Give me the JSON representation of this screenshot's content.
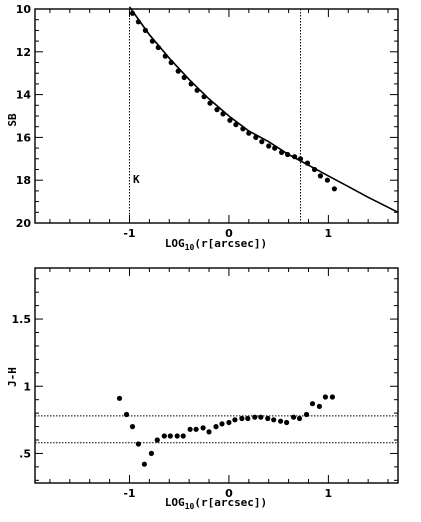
{
  "chart_data": [
    {
      "type": "scatter",
      "xlabel": "LOG10(r[arcsec])",
      "xlabel_main": "LOG",
      "xlabel_sub": "10",
      "xlabel_rest": "(r[arcsec])",
      "ylabel": "SB",
      "annotation": "K",
      "xlim": [
        -1.95,
        1.7
      ],
      "ylim": [
        20,
        10
      ],
      "y_inverted": true,
      "x_ticks": [
        "-1",
        "0",
        "1"
      ],
      "y_ticks": [
        "10",
        "12",
        "14",
        "16",
        "18",
        "20"
      ],
      "vertical_lines": [
        -1.0,
        0.72
      ],
      "series": [
        {
          "kind": "points",
          "x": [
            -0.97,
            -0.91,
            -0.84,
            -0.77,
            -0.71,
            -0.64,
            -0.58,
            -0.51,
            -0.45,
            -0.38,
            -0.32,
            -0.25,
            -0.19,
            -0.12,
            -0.06,
            0.01,
            0.07,
            0.14,
            0.2,
            0.27,
            0.33,
            0.4,
            0.46,
            0.53,
            0.59,
            0.66,
            0.72,
            0.79,
            0.86,
            0.92,
            0.99,
            1.06
          ],
          "y": [
            10.2,
            10.6,
            11.0,
            11.5,
            11.8,
            12.2,
            12.5,
            12.9,
            13.2,
            13.5,
            13.8,
            14.1,
            14.4,
            14.7,
            14.9,
            15.2,
            15.4,
            15.6,
            15.8,
            16.0,
            16.2,
            16.4,
            16.5,
            16.7,
            16.8,
            16.9,
            17.0,
            17.2,
            17.5,
            17.8,
            18.0,
            18.4
          ]
        },
        {
          "kind": "curve",
          "x": [
            -1.0,
            -0.8,
            -0.6,
            -0.4,
            -0.2,
            0.0,
            0.2,
            0.4,
            0.6,
            0.8,
            1.0,
            1.2,
            1.4,
            1.7
          ],
          "y": [
            9.9,
            11.2,
            12.3,
            13.3,
            14.2,
            15.0,
            15.7,
            16.2,
            16.8,
            17.3,
            17.8,
            18.3,
            18.8,
            19.5
          ]
        }
      ]
    },
    {
      "type": "scatter",
      "xlabel": "LOG10(r[arcsec])",
      "xlabel_main": "LOG",
      "xlabel_sub": "10",
      "xlabel_rest": "(r[arcsec])",
      "ylabel": "J-H",
      "xlim": [
        -1.95,
        1.7
      ],
      "ylim": [
        0.28,
        1.88
      ],
      "x_ticks": [
        "-1",
        "0",
        "1"
      ],
      "y_ticks": [
        ".5",
        "1",
        "1.5"
      ],
      "y_tick_values": [
        0.5,
        1.0,
        1.5
      ],
      "horizontal_lines": [
        0.78,
        0.58
      ],
      "series": [
        {
          "kind": "points",
          "x": [
            -1.1,
            -1.03,
            -0.97,
            -0.91,
            -0.85,
            -0.78,
            -0.72,
            -0.65,
            -0.59,
            -0.52,
            -0.46,
            -0.39,
            -0.33,
            -0.26,
            -0.2,
            -0.13,
            -0.07,
            0.0,
            0.06,
            0.13,
            0.19,
            0.26,
            0.32,
            0.39,
            0.45,
            0.52,
            0.58,
            0.65,
            0.71,
            0.78,
            0.84,
            0.91,
            0.97,
            1.04
          ],
          "y": [
            0.91,
            0.79,
            0.7,
            0.57,
            0.42,
            0.5,
            0.6,
            0.63,
            0.63,
            0.63,
            0.63,
            0.68,
            0.68,
            0.69,
            0.66,
            0.7,
            0.72,
            0.73,
            0.75,
            0.76,
            0.76,
            0.77,
            0.77,
            0.76,
            0.75,
            0.74,
            0.73,
            0.77,
            0.76,
            0.79,
            0.87,
            0.85,
            0.92,
            0.92
          ]
        }
      ]
    }
  ]
}
